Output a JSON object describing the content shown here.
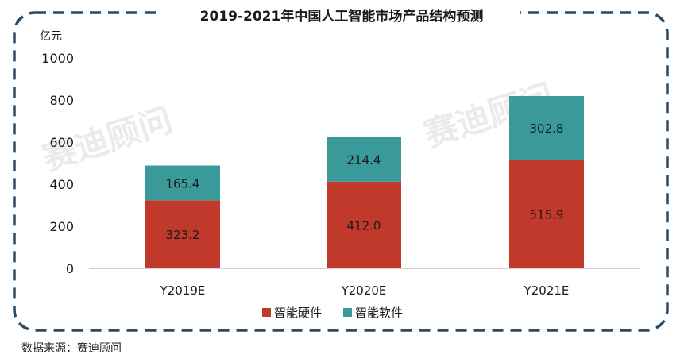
{
  "chart_data": {
    "type": "bar",
    "stacked": true,
    "title": "2019-2021年中国人工智能市场产品结构预测",
    "unit_label": "亿元",
    "categories": [
      "Y2019E",
      "Y2020E",
      "Y2021E"
    ],
    "ylim": [
      0,
      1000
    ],
    "yticks": [
      "0",
      "200",
      "400",
      "600",
      "800",
      "1000"
    ],
    "grid": false,
    "legend_position": "bottom",
    "series": [
      {
        "name": "智能硬件",
        "values": [
          323.2,
          412.0,
          515.9
        ],
        "labels": [
          "323.2",
          "412.0",
          "515.9"
        ],
        "color": "#c0392b"
      },
      {
        "name": "智能软件",
        "values": [
          165.4,
          214.4,
          302.8
        ],
        "labels": [
          "165.4",
          "214.4",
          "302.8"
        ],
        "color": "#3a9a9a"
      }
    ]
  },
  "watermark": "赛迪顾问",
  "source": "数据来源：赛迪顾问",
  "colors": {
    "frame": "#2e4a63",
    "axis": "#bfbfbf"
  }
}
